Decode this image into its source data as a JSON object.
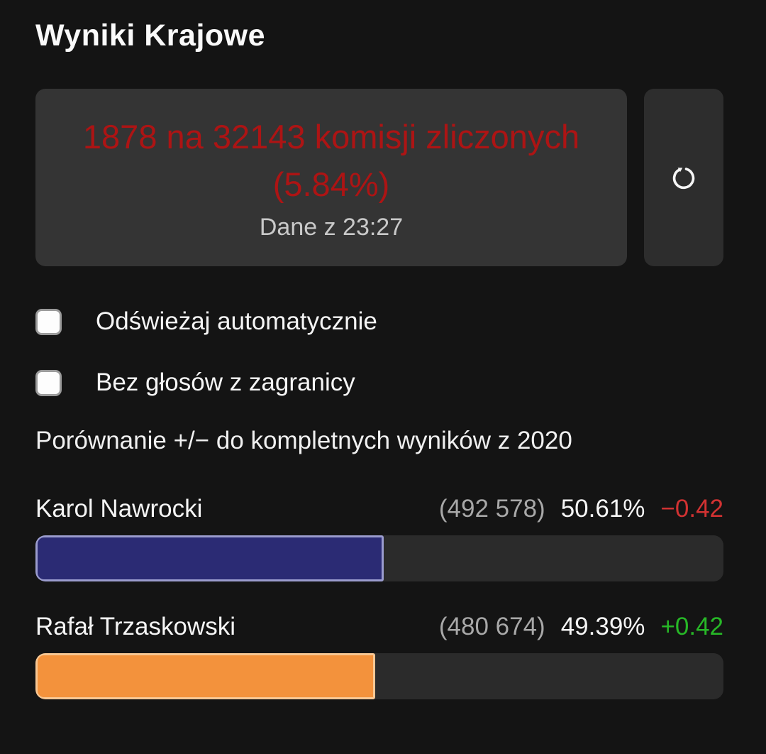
{
  "page": {
    "title": "Wyniki Krajowe"
  },
  "status": {
    "message": "1878 na 32143 komisji zliczonych (5.84%)",
    "message_color": "#ad1414",
    "updated": "Dane z 23:27",
    "counted": "1878",
    "total": "32143",
    "counted_percent": "5.84%"
  },
  "options": [
    {
      "label": "Odświeżaj automatycznie",
      "checked": false
    },
    {
      "label": "Bez głosów z zagranicy",
      "checked": false
    }
  ],
  "comparison_note": "Porównanie +/− do kompletnych wyników z 2020",
  "candidates": [
    {
      "name": "Karol Nawrocki",
      "votes": "(492 578)",
      "percent_label": "50.61%",
      "percent": 50.61,
      "delta": "−0.42",
      "trend": "negative",
      "bar_color": "#2b2b74",
      "bar_border": "#9b9cce"
    },
    {
      "name": "Rafał Trzaskowski",
      "votes": "(480 674)",
      "percent_label": "49.39%",
      "percent": 49.39,
      "delta": "+0.42",
      "trend": "positive",
      "bar_color": "#f3923c",
      "bar_border": "#f8c793"
    }
  ],
  "colors": {
    "positive": "#27b827",
    "negative": "#d23232",
    "track": "#2b2b2b",
    "page_background": "#141414"
  }
}
